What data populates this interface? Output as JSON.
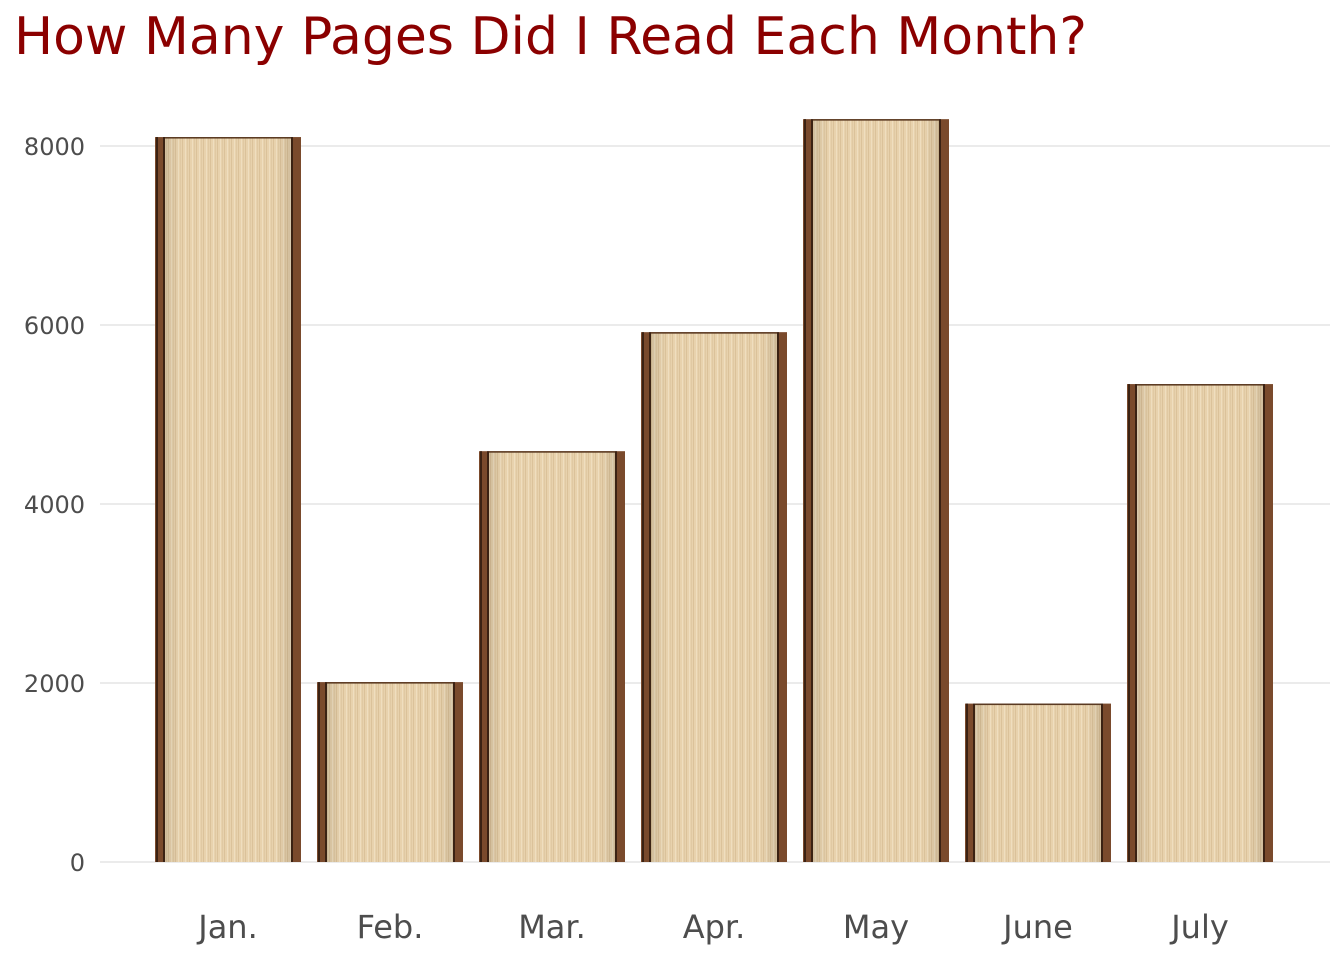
{
  "chart_data": {
    "type": "bar",
    "title": "How Many Pages Did I Read Each Month?",
    "xlabel": "",
    "ylabel": "",
    "categories": [
      "Jan.",
      "Feb.",
      "Mar.",
      "Apr.",
      "May",
      "June",
      "July"
    ],
    "values": [
      8100,
      2010,
      4590,
      5920,
      8300,
      1770,
      5340
    ],
    "ylim": [
      0,
      8300
    ],
    "yticks": [
      0,
      2000,
      4000,
      6000,
      8000
    ],
    "ytick_labels": [
      "0",
      "2000",
      "4000",
      "6000",
      "8000"
    ],
    "grid": true,
    "legend": "none",
    "colors": {
      "title": "#8b0000",
      "grid": "#ebebeb",
      "tick_text": "#4d4d4d",
      "page": "#e8d2ad",
      "page_line": "#c9ad84",
      "cover": "#7a4a2c",
      "cover_dark": "#3b2213"
    }
  }
}
